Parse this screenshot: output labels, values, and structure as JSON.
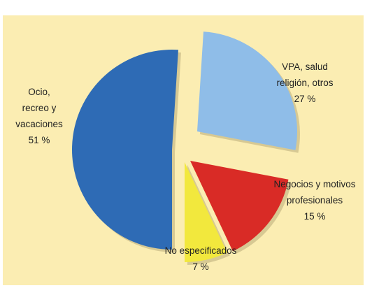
{
  "chart_data": {
    "type": "pie",
    "title": "",
    "slices": [
      {
        "label_lines": [
          "Ocio,",
          "recreo y",
          "vacaciones"
        ],
        "value": 51,
        "value_text": "51 %",
        "color": "#2e6bb5"
      },
      {
        "label_lines": [
          "VPA, salud",
          "religión, otros"
        ],
        "value": 27,
        "value_text": "27 %",
        "color": "#8fbde8"
      },
      {
        "label_lines": [
          "Negocios y motivos",
          "profesionales"
        ],
        "value": 15,
        "value_text": "15 %",
        "color": "#d92b26"
      },
      {
        "label_lines": [
          "No especificados"
        ],
        "value": 7,
        "value_text": "7 %",
        "color": "#f2e83d"
      }
    ],
    "legend": "none",
    "exploded": true
  }
}
